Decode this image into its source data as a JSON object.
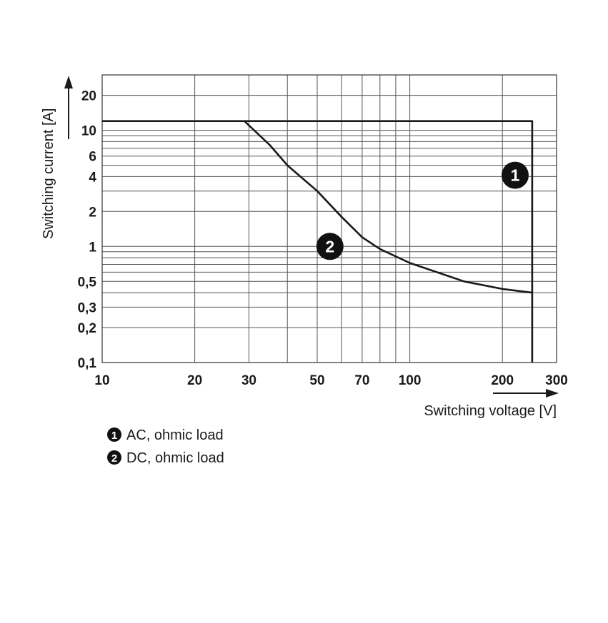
{
  "chart_data": {
    "type": "line",
    "x_scale": "log",
    "y_scale": "log",
    "xlim": [
      10,
      300
    ],
    "ylim": [
      0.1,
      30
    ],
    "xlabel": "Switching voltage [V]",
    "ylabel": "Switching current [A]",
    "x_ticks": [
      {
        "value": 10,
        "label": "10"
      },
      {
        "value": 20,
        "label": "20"
      },
      {
        "value": 30,
        "label": "30"
      },
      {
        "value": 50,
        "label": "50"
      },
      {
        "value": 70,
        "label": "70"
      },
      {
        "value": 100,
        "label": "100"
      },
      {
        "value": 200,
        "label": "200"
      },
      {
        "value": 300,
        "label": "300"
      }
    ],
    "y_ticks": [
      {
        "value": 0.1,
        "label": "0,1"
      },
      {
        "value": 0.2,
        "label": "0,2"
      },
      {
        "value": 0.3,
        "label": "0,3"
      },
      {
        "value": 0.5,
        "label": "0,5"
      },
      {
        "value": 1,
        "label": "1"
      },
      {
        "value": 2,
        "label": "2"
      },
      {
        "value": 4,
        "label": "4"
      },
      {
        "value": 6,
        "label": "6"
      },
      {
        "value": 10,
        "label": "10"
      },
      {
        "value": 20,
        "label": "20"
      }
    ],
    "x_gridlines": [
      10,
      20,
      30,
      40,
      50,
      60,
      70,
      80,
      90,
      100,
      200,
      300
    ],
    "y_gridlines": [
      0.1,
      0.2,
      0.3,
      0.4,
      0.5,
      0.6,
      0.7,
      0.8,
      0.9,
      1,
      2,
      3,
      4,
      5,
      6,
      7,
      8,
      9,
      10,
      20,
      30
    ],
    "grid": true,
    "series": [
      {
        "marker": "1",
        "name": "AC, ohmic load",
        "x": [
          10,
          250,
          250
        ],
        "y": [
          12,
          12,
          0.1
        ]
      },
      {
        "marker": "2",
        "name": "DC, ohmic load",
        "x": [
          29,
          35,
          40,
          50,
          60,
          70,
          80,
          100,
          150,
          200,
          250
        ],
        "y": [
          12,
          7.5,
          5,
          3,
          1.8,
          1.2,
          0.95,
          0.72,
          0.5,
          0.43,
          0.4
        ]
      }
    ],
    "annotations": [
      {
        "text": "1",
        "x": 220,
        "y": 4.1
      },
      {
        "text": "2",
        "x": 55,
        "y": 1.0
      }
    ],
    "legend": [
      {
        "marker": "1",
        "text": "AC, ohmic load"
      },
      {
        "marker": "2",
        "text": "DC, ohmic load"
      }
    ],
    "legend_position": "bottom-left"
  }
}
